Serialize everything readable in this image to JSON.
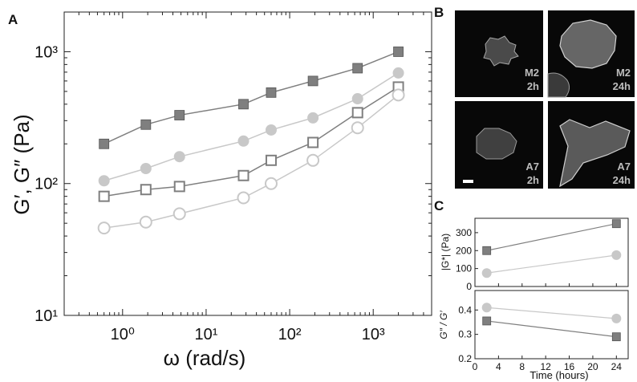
{
  "figure": {
    "panels": {
      "a": "A",
      "b": "B",
      "c": "C"
    }
  },
  "panel_b": {
    "images": [
      {
        "line": "M2",
        "time": "2h"
      },
      {
        "line": "M2",
        "time": "24h"
      },
      {
        "line": "A7",
        "time": "2h"
      },
      {
        "line": "A7",
        "time": "24h"
      }
    ]
  },
  "chart_data": [
    {
      "panel": "A",
      "type": "line",
      "xscale": "log",
      "yscale": "log",
      "xlabel": "ω (rad/s)",
      "ylabel": "G′, G″ (Pa)",
      "xlim": [
        0.2,
        5000
      ],
      "ylim": [
        10,
        2000
      ],
      "x_ticks": [
        1,
        10,
        100,
        1000
      ],
      "x_tick_labels": [
        "10⁰",
        "10¹",
        "10²",
        "10³"
      ],
      "y_ticks": [
        10,
        100,
        1000
      ],
      "y_tick_labels": [
        "10¹",
        "10²",
        "10³"
      ],
      "x": [
        0.6,
        1.9,
        4.8,
        28,
        60,
        190,
        650,
        2000
      ],
      "series": [
        {
          "marker": "square-filled",
          "color": "#7f7f7f",
          "values": [
            200,
            280,
            330,
            400,
            490,
            600,
            750,
            1000
          ]
        },
        {
          "marker": "circle-filled",
          "color": "#c8c8c8",
          "values": [
            105,
            130,
            160,
            210,
            255,
            315,
            440,
            690
          ]
        },
        {
          "marker": "square-open",
          "color": "#7f7f7f",
          "values": [
            80,
            90,
            95,
            115,
            150,
            205,
            345,
            540
          ]
        },
        {
          "marker": "circle-open",
          "color": "#c8c8c8",
          "values": [
            46,
            51,
            59,
            78,
            100,
            150,
            265,
            470
          ]
        }
      ]
    },
    {
      "panel": "C-top",
      "type": "line",
      "ylabel": "|G*| (Pa)",
      "xlim": [
        0,
        26
      ],
      "ylim": [
        0,
        380
      ],
      "y_ticks": [
        0,
        100,
        200,
        300
      ],
      "x": [
        2,
        24
      ],
      "series": [
        {
          "marker": "square-filled",
          "color": "#7f7f7f",
          "values": [
            200,
            350
          ]
        },
        {
          "marker": "circle-filled",
          "color": "#c8c8c8",
          "values": [
            75,
            175
          ]
        }
      ]
    },
    {
      "panel": "C-bottom",
      "type": "line",
      "xlabel": "Time (hours)",
      "ylabel": "G″ / G′",
      "xlim": [
        0,
        26
      ],
      "ylim": [
        0.2,
        0.48
      ],
      "x_ticks": [
        0,
        4,
        8,
        12,
        16,
        20,
        24
      ],
      "y_ticks": [
        0.2,
        0.3,
        0.4
      ],
      "x": [
        2,
        24
      ],
      "series": [
        {
          "marker": "circle-filled",
          "color": "#c8c8c8",
          "values": [
            0.41,
            0.365
          ]
        },
        {
          "marker": "square-filled",
          "color": "#7f7f7f",
          "values": [
            0.355,
            0.29
          ]
        }
      ]
    }
  ]
}
